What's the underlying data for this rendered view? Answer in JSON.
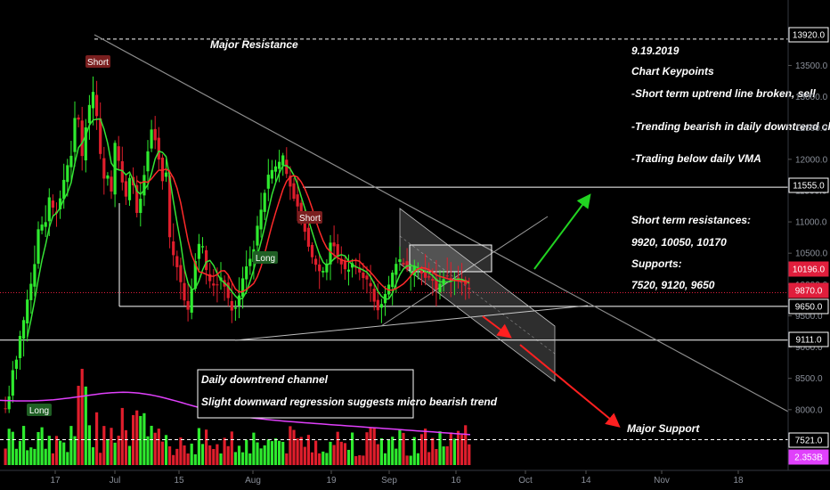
{
  "chart_data": {
    "type": "candlestick",
    "price_axis": {
      "ticks": [
        8000.0,
        8500.0,
        9000.0,
        9500.0,
        10000.0,
        10500.0,
        11000.0,
        11500.0,
        12000.0,
        12500.0,
        13000.0,
        13500.0
      ]
    },
    "time_axis": {
      "ticks": [
        "17",
        "Jul",
        "15",
        "Aug",
        "19",
        "Sep",
        "16",
        "Oct",
        "14",
        "Nov",
        "18"
      ]
    },
    "price_tags": [
      {
        "value": "13920.0",
        "bg": "#000000",
        "fg": "#ffffff",
        "border": "#ffffff"
      },
      {
        "value": "11555.0",
        "bg": "#000000",
        "fg": "#ffffff",
        "border": "#ffffff"
      },
      {
        "value": "10196.0",
        "bg": "#e01e3c",
        "fg": "#ffffff",
        "border": "#e01e3c"
      },
      {
        "value": "9870.0",
        "bg": "#e01e3c",
        "fg": "#ffffff",
        "border": "#e01e3c"
      },
      {
        "value": "9650.0",
        "bg": "#000000",
        "fg": "#ffffff",
        "border": "#ffffff"
      },
      {
        "value": "9111.0",
        "bg": "#000000",
        "fg": "#ffffff",
        "border": "#ffffff"
      },
      {
        "value": "7521.0",
        "bg": "#000000",
        "fg": "#ffffff",
        "border": "#ffffff"
      },
      {
        "value": "2.353B",
        "bg": "#e040fb",
        "fg": "#ffffff",
        "border": "#e040fb"
      }
    ],
    "horizontal_levels": [
      13920.0,
      11555.0,
      9650.0,
      9111.0,
      7521.0
    ],
    "current_price": 9870.0,
    "vma_value": 10196.0,
    "volume_last": "2.353B",
    "annotations": {
      "major_resistance": "Major Resistance",
      "major_support": "Major Support",
      "date": "9.19.2019",
      "keypoints_title": "Chart Keypoints",
      "keypoint1": "-Short term uptrend line broken, sell",
      "keypoint2": "-Trending bearish in daily downtrend channel",
      "keypoint3": "-Trading below daily VMA",
      "resistances_title": "Short term resistances:",
      "resistances": "9920, 10050, 10170",
      "supports_title": "Supports:",
      "supports": "7520, 9120, 9650",
      "channel_box1": "Daily downtrend channel",
      "channel_box2": "Slight downward regression suggests micro bearish trend"
    },
    "signals": [
      {
        "label": "Short",
        "type": "sell"
      },
      {
        "label": "Short",
        "type": "sell"
      },
      {
        "label": "Long",
        "type": "buy"
      },
      {
        "label": "Long",
        "type": "buy"
      }
    ],
    "colors": {
      "up": "#2eea2e",
      "down": "#e01e2c",
      "vma": "#ff2a2a",
      "ma_green": "#35e335",
      "volume_ma": "#e040fb",
      "trend": "#8c8c8c",
      "arrow_up": "#21d321",
      "arrow_down": "#ff2020"
    }
  }
}
